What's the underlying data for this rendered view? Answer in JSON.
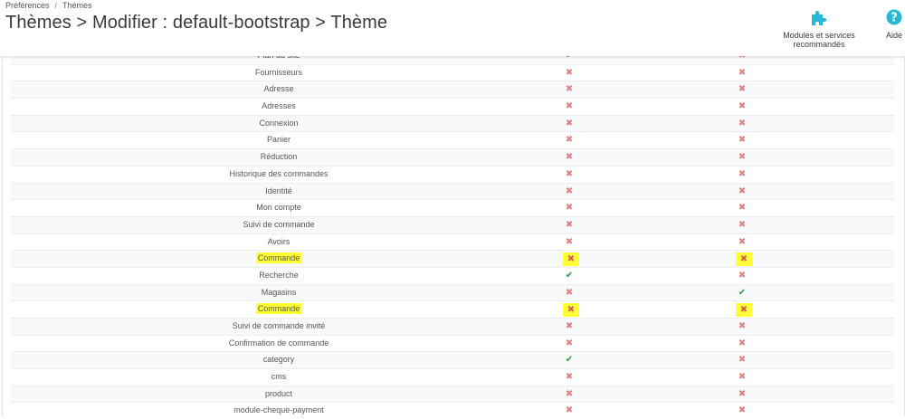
{
  "breadcrumb": [
    "Préférences",
    "Thèmes"
  ],
  "breadcrumb_separator": "/",
  "page_title": "Thèmes > Modifier : default-bootstrap > Thème",
  "toolbar": {
    "modules_label": "Modules et services recommandés",
    "modules_icon": "puzzle-icon",
    "help_label": "Aide",
    "help_icon": "question-circle-icon",
    "accent_color": "#25b9d7"
  },
  "status_colors": {
    "enabled": "#2a9d3a",
    "disabled": "#e08080",
    "highlight": "#ffff33"
  },
  "rows": [
    {
      "name": "Plan du site",
      "col1": "yes",
      "col2": "no"
    },
    {
      "name": "Fournisseurs",
      "col1": "no",
      "col2": "no"
    },
    {
      "name": "Adresse",
      "col1": "no",
      "col2": "no"
    },
    {
      "name": "Adresses",
      "col1": "no",
      "col2": "no"
    },
    {
      "name": "Connexion",
      "col1": "no",
      "col2": "no"
    },
    {
      "name": "Panier",
      "col1": "no",
      "col2": "no"
    },
    {
      "name": "Réduction",
      "col1": "no",
      "col2": "no"
    },
    {
      "name": "Historique des commandes",
      "col1": "no",
      "col2": "no"
    },
    {
      "name": "Identité",
      "col1": "no",
      "col2": "no"
    },
    {
      "name": "Mon compte",
      "col1": "no",
      "col2": "no"
    },
    {
      "name": "Suivi de commande",
      "col1": "no",
      "col2": "no"
    },
    {
      "name": "Avoirs",
      "col1": "no",
      "col2": "no"
    },
    {
      "name": "Commande",
      "col1": "no",
      "col2": "no",
      "highlighted": true
    },
    {
      "name": "Recherche",
      "col1": "yes",
      "col2": "no"
    },
    {
      "name": "Magasins",
      "col1": "no",
      "col2": "yes"
    },
    {
      "name": "Commande",
      "col1": "no",
      "col2": "no",
      "highlighted": true
    },
    {
      "name": "Suivi de commande invité",
      "col1": "no",
      "col2": "no"
    },
    {
      "name": "Confirmation de commande",
      "col1": "no",
      "col2": "no"
    },
    {
      "name": "category",
      "col1": "yes",
      "col2": "no"
    },
    {
      "name": "cms",
      "col1": "no",
      "col2": "no"
    },
    {
      "name": "product",
      "col1": "no",
      "col2": "no"
    },
    {
      "name": "module-cheque-payment",
      "col1": "no",
      "col2": "no"
    }
  ]
}
